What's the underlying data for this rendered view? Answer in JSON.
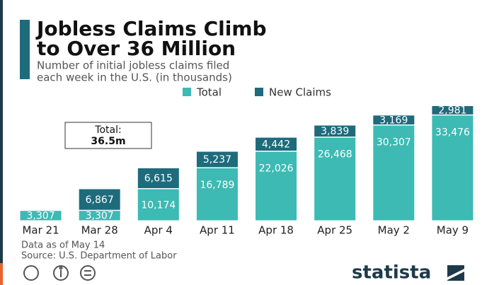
{
  "chart_data": {
    "type": "stacked-bar",
    "title": [
      "Jobless Claims Climb",
      "to Over 36 Million"
    ],
    "subtitle": [
      "Number of initial jobless claims filed",
      "each week in the U.S. (in thousands)"
    ],
    "categories": [
      "Mar 21",
      "Mar 28",
      "Apr 4",
      "Apr 11",
      "Apr 18",
      "Apr 25",
      "May 2",
      "May 9"
    ],
    "series": [
      {
        "name": "Total",
        "color": "#3cbab3",
        "values": [
          3307,
          3307,
          10174,
          16789,
          22026,
          26468,
          30307,
          33476
        ],
        "value_labels": [
          "3,307",
          "3,307",
          "10,174",
          "16,789",
          "22,026",
          "26,468",
          "30,307",
          "33,476"
        ]
      },
      {
        "name": "New Claims",
        "color": "#1e6b7c",
        "values": [
          null,
          6867,
          6615,
          5237,
          4442,
          3839,
          3169,
          2981
        ],
        "value_labels": [
          null,
          "6,867",
          "6,615",
          "5,237",
          "4,442",
          "3,839",
          "3,169",
          "2,981"
        ]
      }
    ],
    "annotation": [
      "Total:",
      "36.5m"
    ],
    "notes": [
      "Data as of May 14",
      "Source: U.S. Department of Labor"
    ],
    "brand": "statista"
  }
}
